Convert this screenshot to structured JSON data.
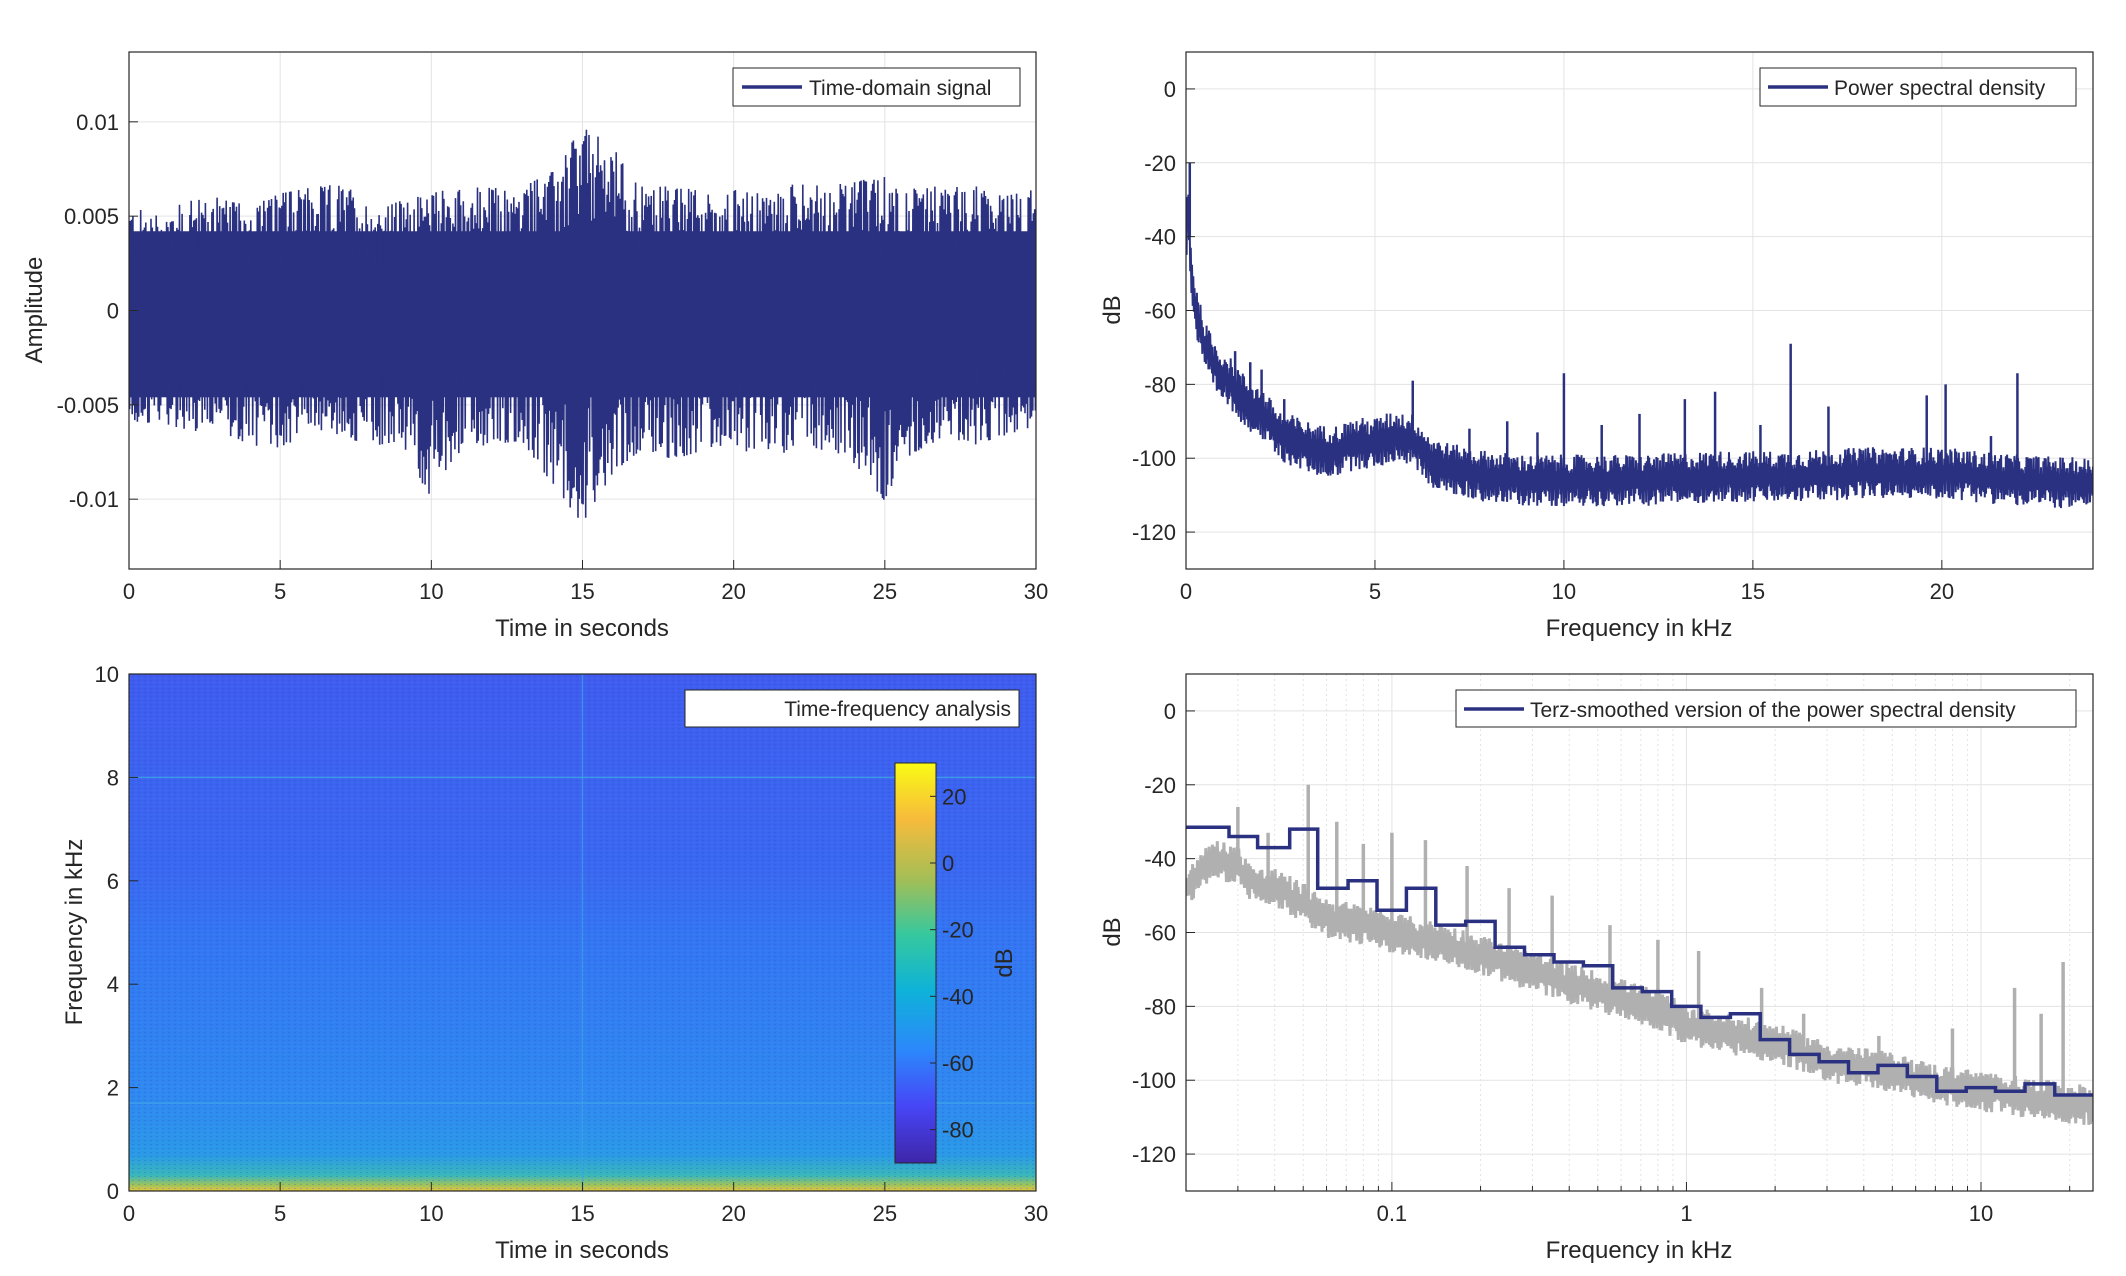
{
  "colors": {
    "series": "#2b3181",
    "raw_psd": "#b0b0b0",
    "grid": "#e3e3e3",
    "axes": "#262626",
    "colormap": [
      "#3e26a8",
      "#4745f6",
      "#2c87fb",
      "#0eb2d9",
      "#35c89e",
      "#a4be56",
      "#f7bb3b",
      "#f9fb15"
    ]
  },
  "chart_data": [
    {
      "id": "time_domain",
      "type": "line",
      "xlabel": "Time in seconds",
      "ylabel": "Amplitude",
      "xlim": [
        0,
        30
      ],
      "ylim": [
        -0.0137,
        0.0137
      ],
      "xticks": [
        0,
        5,
        10,
        15,
        20,
        25,
        30
      ],
      "xtick_labels": [
        "0",
        "5",
        "10",
        "15",
        "20",
        "25",
        "30"
      ],
      "yticks": [
        -0.01,
        -0.005,
        0,
        0.005,
        0.01
      ],
      "ytick_labels": [
        "-0.01",
        "-0.005",
        "0",
        "0.005",
        "0.01"
      ],
      "grid": true,
      "legend_position": "top-right",
      "series": [
        {
          "name": "Time-domain signal",
          "envelope_upper": [
            0.0055,
            0.0052,
            0.0058,
            0.006,
            0.0055,
            0.0062,
            0.0065,
            0.0068,
            0.0056,
            0.0058,
            0.0062,
            0.0066,
            0.0066,
            0.0065,
            0.0074,
            0.0097,
            0.0088,
            0.0065,
            0.0066,
            0.0063,
            0.0064,
            0.0062,
            0.0067,
            0.0066,
            0.0068,
            0.0072,
            0.0065,
            0.0066,
            0.0067,
            0.0062,
            0.0064
          ],
          "envelope_lower": [
            -0.0062,
            -0.0058,
            -0.0066,
            -0.0064,
            -0.0071,
            -0.0074,
            -0.0062,
            -0.0066,
            -0.0072,
            -0.0069,
            -0.0101,
            -0.0073,
            -0.0071,
            -0.0069,
            -0.0092,
            -0.0113,
            -0.0086,
            -0.0073,
            -0.0079,
            -0.0074,
            -0.007,
            -0.0082,
            -0.0072,
            -0.0074,
            -0.0081,
            -0.0101,
            -0.0075,
            -0.0068,
            -0.0071,
            -0.0066,
            -0.0061
          ]
        }
      ]
    },
    {
      "id": "psd",
      "type": "line",
      "xlabel": "Frequency in kHz",
      "ylabel": "dB",
      "xlim": [
        0,
        24
      ],
      "ylim": [
        -130,
        10
      ],
      "xticks": [
        0,
        5,
        10,
        15,
        20
      ],
      "xtick_labels": [
        "0",
        "5",
        "10",
        "15",
        "20"
      ],
      "yticks": [
        -120,
        -100,
        -80,
        -60,
        -40,
        -20,
        0
      ],
      "ytick_labels": [
        "-120",
        "-100",
        "-80",
        "-60",
        "-40",
        "-20",
        "0"
      ],
      "grid": true,
      "legend_position": "top-right",
      "series": [
        {
          "name": "Power spectral density",
          "x": [
            0,
            0.05,
            0.15,
            0.3,
            0.5,
            0.8,
            1.2,
            1.6,
            2,
            2.5,
            3,
            3.5,
            4,
            4.5,
            5,
            5.5,
            6,
            6.5,
            7,
            8,
            9,
            10,
            12,
            14,
            16,
            18,
            20,
            22,
            24
          ],
          "y": [
            -45,
            -28,
            -52,
            -62,
            -70,
            -76,
            -80,
            -85,
            -88,
            -94,
            -96,
            -98,
            -98,
            -96,
            -96,
            -94,
            -95,
            -101,
            -103,
            -105,
            -106,
            -106,
            -106,
            -105,
            -105,
            -104,
            -104,
            -106,
            -107
          ],
          "spikes": [
            {
              "x": 0.1,
              "y": -20
            },
            {
              "x": 1.3,
              "y": -71
            },
            {
              "x": 1.7,
              "y": -74
            },
            {
              "x": 2.0,
              "y": -76
            },
            {
              "x": 2.6,
              "y": -84
            },
            {
              "x": 3.9,
              "y": -94
            },
            {
              "x": 6.0,
              "y": -79
            },
            {
              "x": 7.5,
              "y": -92
            },
            {
              "x": 8.5,
              "y": -90
            },
            {
              "x": 9.3,
              "y": -93
            },
            {
              "x": 10.0,
              "y": -77
            },
            {
              "x": 11.0,
              "y": -91
            },
            {
              "x": 12.0,
              "y": -88
            },
            {
              "x": 13.2,
              "y": -84
            },
            {
              "x": 14.0,
              "y": -82
            },
            {
              "x": 15.2,
              "y": -91
            },
            {
              "x": 16.0,
              "y": -69
            },
            {
              "x": 17.0,
              "y": -86
            },
            {
              "x": 19.6,
              "y": -83
            },
            {
              "x": 20.1,
              "y": -80
            },
            {
              "x": 21.3,
              "y": -94
            },
            {
              "x": 22.0,
              "y": -77
            }
          ]
        }
      ]
    },
    {
      "id": "spectrogram",
      "type": "heatmap",
      "xlabel": "Time in seconds",
      "ylabel": "Frequency in kHz",
      "xlim": [
        0,
        30
      ],
      "ylim": [
        0,
        10
      ],
      "xticks": [
        0,
        5,
        10,
        15,
        20,
        25,
        30
      ],
      "xtick_labels": [
        "0",
        "5",
        "10",
        "15",
        "20",
        "25",
        "30"
      ],
      "yticks": [
        0,
        2,
        4,
        6,
        8,
        10
      ],
      "ytick_labels": [
        "0",
        "2",
        "4",
        "6",
        "8",
        "10"
      ],
      "title_box": "Time-frequency analysis",
      "colorbar": {
        "label": "dB",
        "range": [
          -90,
          30
        ],
        "ticks": [
          -80,
          -60,
          -40,
          -20,
          0,
          20
        ],
        "tick_labels": [
          "-80",
          "-60",
          "-40",
          "-20",
          "0",
          "20"
        ]
      },
      "frequency_profile_db": [
        {
          "f": 0,
          "db": 0
        },
        {
          "f": 0.1,
          "db": -30
        },
        {
          "f": 0.3,
          "db": -45
        },
        {
          "f": 0.6,
          "db": -50
        },
        {
          "f": 1,
          "db": -53
        },
        {
          "f": 1.7,
          "db": -55
        },
        {
          "f": 2,
          "db": -60
        },
        {
          "f": 5,
          "db": -62
        },
        {
          "f": 6,
          "db": -64
        },
        {
          "f": 8,
          "db": -68
        },
        {
          "f": 10,
          "db": -70
        }
      ],
      "lines": [
        {
          "axis": "f",
          "value": 8,
          "db": -58
        },
        {
          "axis": "f",
          "value": 1.7,
          "db": -52
        },
        {
          "axis": "t",
          "value": 15,
          "db": -52
        }
      ]
    },
    {
      "id": "terz",
      "type": "line",
      "xlabel": "Frequency in kHz",
      "ylabel": "dB",
      "xscale": "log",
      "xlim": [
        0.02,
        24
      ],
      "ylim": [
        -130,
        10
      ],
      "xticks": [
        0.1,
        1,
        10
      ],
      "xtick_labels": [
        "0.1",
        "1",
        "10"
      ],
      "yticks": [
        -120,
        -100,
        -80,
        -60,
        -40,
        -20,
        0
      ],
      "ytick_labels": [
        "-120",
        "-100",
        "-80",
        "-60",
        "-40",
        "-20",
        "0"
      ],
      "grid": true,
      "legend_position": "top-right",
      "series": [
        {
          "name": "",
          "role": "raw",
          "x": [
            0.02,
            0.025,
            0.03,
            0.035,
            0.04,
            0.05,
            0.06,
            0.08,
            0.1,
            0.15,
            0.2,
            0.3,
            0.5,
            0.8,
            1,
            1.5,
            2,
            3,
            5,
            7,
            10,
            15,
            24
          ],
          "y": [
            -48,
            -40,
            -42,
            -48,
            -48,
            -52,
            -56,
            -58,
            -60,
            -63,
            -66,
            -71,
            -76,
            -81,
            -85,
            -88,
            -90,
            -95,
            -98,
            -101,
            -103,
            -105,
            -107
          ],
          "spikes": [
            {
              "x": 0.03,
              "y": -26
            },
            {
              "x": 0.038,
              "y": -33
            },
            {
              "x": 0.052,
              "y": -20
            },
            {
              "x": 0.065,
              "y": -30
            },
            {
              "x": 0.08,
              "y": -36
            },
            {
              "x": 0.1,
              "y": -33
            },
            {
              "x": 0.13,
              "y": -35
            },
            {
              "x": 0.18,
              "y": -42
            },
            {
              "x": 0.25,
              "y": -48
            },
            {
              "x": 0.35,
              "y": -50
            },
            {
              "x": 0.55,
              "y": -58
            },
            {
              "x": 0.8,
              "y": -62
            },
            {
              "x": 1.1,
              "y": -65
            },
            {
              "x": 1.8,
              "y": -75
            },
            {
              "x": 2.5,
              "y": -82
            },
            {
              "x": 4.5,
              "y": -88
            },
            {
              "x": 8,
              "y": -86
            },
            {
              "x": 10,
              "y": -98
            },
            {
              "x": 13,
              "y": -75
            },
            {
              "x": 16,
              "y": -82
            },
            {
              "x": 19,
              "y": -68
            }
          ]
        },
        {
          "name": "Terz-smoothed version of the power spectral density",
          "role": "smoothed",
          "x": [
            0.02,
            0.028,
            0.028,
            0.035,
            0.035,
            0.045,
            0.045,
            0.056,
            0.056,
            0.071,
            0.071,
            0.089,
            0.089,
            0.112,
            0.112,
            0.141,
            0.141,
            0.178,
            0.178,
            0.224,
            0.224,
            0.282,
            0.282,
            0.355,
            0.355,
            0.447,
            0.447,
            0.562,
            0.562,
            0.708,
            0.708,
            0.891,
            0.891,
            1.12,
            1.12,
            1.41,
            1.41,
            1.78,
            1.78,
            2.24,
            2.24,
            2.82,
            2.82,
            3.55,
            3.55,
            4.47,
            4.47,
            5.62,
            5.62,
            7.08,
            7.08,
            8.91,
            8.91,
            11.2,
            11.2,
            14.1,
            14.1,
            17.8,
            17.8,
            24
          ],
          "y": [
            -31.5,
            -31.5,
            -34,
            -34,
            -37,
            -37,
            -32,
            -32,
            -48,
            -48,
            -46,
            -46,
            -54,
            -54,
            -48,
            -48,
            -58,
            -58,
            -57,
            -57,
            -64,
            -64,
            -66,
            -66,
            -68,
            -68,
            -69,
            -69,
            -75,
            -75,
            -76,
            -76,
            -80,
            -80,
            -83,
            -83,
            -82,
            -82,
            -89,
            -89,
            -93,
            -93,
            -95,
            -95,
            -98,
            -98,
            -96,
            -96,
            -99,
            -99,
            -103,
            -103,
            -102,
            -102,
            -103,
            -103,
            -101,
            -101,
            -104,
            -104
          ]
        }
      ]
    }
  ]
}
